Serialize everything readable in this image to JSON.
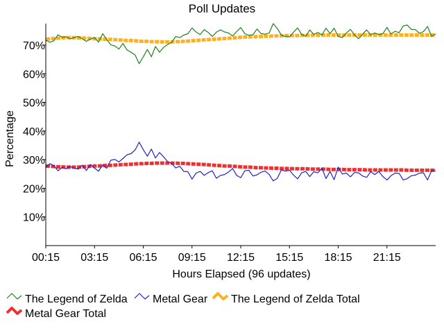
{
  "chart_data": {
    "type": "line",
    "title": "Poll Updates",
    "xlabel": "Hours Elapsed (96 updates)",
    "ylabel": "Percentage",
    "ylim": [
      0,
      77.5
    ],
    "xlim": [
      0,
      96
    ],
    "y_ticks": [
      10,
      20,
      30,
      40,
      50,
      60,
      70
    ],
    "y_tick_labels": [
      "10%",
      "20%",
      "30%",
      "40%",
      "50%",
      "60%",
      "70%"
    ],
    "x_ticks": [
      0,
      12,
      24,
      36,
      48,
      60,
      72,
      84
    ],
    "x_tick_labels": [
      "00:15",
      "03:15",
      "06:15",
      "09:15",
      "12:15",
      "15:15",
      "18:15",
      "21:15"
    ],
    "grid": false,
    "legend_position": "bottom",
    "series": [
      {
        "name": "The Legend of Zelda",
        "color": "#208020",
        "style": "thin",
        "values": [
          71.7,
          71.0,
          71.5,
          73.6,
          72.7,
          72.9,
          72.2,
          72.6,
          73.0,
          72.2,
          71.3,
          72.1,
          72.6,
          71.0,
          74.0,
          72.0,
          70.1,
          69.7,
          68.6,
          70.6,
          68.3,
          67.5,
          66.5,
          63.5,
          65.9,
          68.5,
          65.9,
          69.5,
          67.5,
          69.2,
          70.2,
          71.0,
          73.0,
          72.6,
          73.5,
          74.0,
          76.0,
          74.6,
          73.7,
          75.4,
          74.4,
          73.0,
          74.5,
          75.3,
          74.6,
          74.2,
          73.2,
          74.7,
          76.1,
          74.0,
          73.4,
          73.6,
          75.6,
          74.0,
          73.8,
          74.2,
          77.5,
          75.8,
          73.5,
          73.0,
          72.9,
          74.5,
          76.0,
          73.7,
          73.1,
          75.3,
          73.7,
          74.4,
          73.5,
          75.9,
          74.0,
          75.9,
          73.0,
          72.6,
          74.2,
          75.5,
          73.6,
          72.2,
          73.8,
          75.3,
          73.6,
          74.2,
          73.7,
          74.0,
          76.2,
          73.9,
          74.8,
          74.3,
          76.7,
          77.0,
          75.5,
          75.4,
          74.1,
          74.7,
          76.5,
          73.0,
          73.9
        ]
      },
      {
        "name": "Metal Gear",
        "color": "#2020c8",
        "style": "thin",
        "values": [
          27.3,
          28.6,
          27.9,
          26.1,
          27.3,
          26.8,
          27.6,
          27.0,
          26.7,
          28.1,
          26.2,
          28.3,
          27.0,
          26.0,
          28.1,
          27.0,
          29.8,
          30.1,
          29.2,
          30.4,
          31.7,
          32.1,
          33.4,
          36.1,
          33.5,
          31.2,
          33.7,
          30.6,
          32.5,
          31.0,
          29.3,
          28.7,
          27.1,
          27.7,
          25.9,
          25.8,
          23.2,
          25.3,
          25.9,
          24.5,
          25.5,
          26.1,
          23.5,
          24.5,
          24.8,
          25.7,
          26.9,
          24.5,
          23.7,
          26.1,
          26.3,
          24.3,
          24.7,
          25.6,
          26.0,
          24.8,
          22.6,
          23.5,
          26.4,
          26.0,
          26.3,
          24.6,
          23.3,
          25.4,
          25.9,
          24.1,
          25.8,
          25.4,
          27.0,
          23.4,
          25.9,
          23.0,
          27.4,
          25.0,
          25.3,
          24.0,
          25.5,
          25.4,
          24.3,
          23.8,
          25.8,
          24.8,
          25.9,
          24.1,
          22.9,
          24.4,
          25.3,
          25.2,
          22.9,
          23.4,
          24.4,
          24.6,
          25.3,
          25.4,
          22.9,
          26.2,
          26.1
        ]
      },
      {
        "name": "The Legend of Zelda Total",
        "color": "#ffb020",
        "style": "thick",
        "values": [
          72.0,
          72.2,
          72.3,
          72.4,
          72.5,
          72.6,
          72.6,
          72.6,
          72.5,
          72.5,
          72.4,
          72.3,
          72.2,
          72.2,
          72.1,
          72.0,
          72.0,
          71.9,
          71.8,
          71.7,
          71.6,
          71.6,
          71.5,
          71.4,
          71.3,
          71.3,
          71.2,
          71.2,
          71.1,
          71.1,
          71.1,
          71.1,
          71.2,
          71.2,
          71.3,
          71.4,
          71.5,
          71.6,
          71.7,
          71.8,
          71.9,
          72.0,
          72.1,
          72.2,
          72.3,
          72.4,
          72.5,
          72.6,
          72.7,
          72.8,
          72.8,
          72.9,
          73.0,
          73.0,
          73.1,
          73.1,
          73.2,
          73.2,
          73.2,
          73.3,
          73.3,
          73.3,
          73.3,
          73.4,
          73.4,
          73.4,
          73.4,
          73.4,
          73.5,
          73.5,
          73.5,
          73.5,
          73.5,
          73.5,
          73.5,
          73.5,
          73.5,
          73.5,
          73.5,
          73.5,
          73.5,
          73.5,
          73.5,
          73.5,
          73.5,
          73.5,
          73.5,
          73.5,
          73.5,
          73.5,
          73.5,
          73.5,
          73.5,
          73.5,
          73.5,
          73.5,
          73.5
        ]
      },
      {
        "name": "Metal Gear Total",
        "color": "#f03030",
        "style": "thick",
        "values": [
          27.8,
          27.7,
          27.6,
          27.5,
          27.5,
          27.4,
          27.4,
          27.4,
          27.4,
          27.5,
          27.6,
          27.7,
          27.8,
          27.8,
          27.9,
          28.0,
          28.0,
          28.1,
          28.2,
          28.3,
          28.3,
          28.4,
          28.5,
          28.6,
          28.6,
          28.7,
          28.7,
          28.8,
          28.8,
          28.8,
          28.8,
          28.8,
          28.8,
          28.7,
          28.7,
          28.6,
          28.5,
          28.4,
          28.4,
          28.3,
          28.2,
          28.1,
          28.0,
          27.9,
          27.8,
          27.8,
          27.7,
          27.6,
          27.5,
          27.4,
          27.4,
          27.3,
          27.2,
          27.2,
          27.1,
          27.1,
          27.0,
          27.0,
          26.9,
          26.9,
          26.9,
          26.8,
          26.8,
          26.8,
          26.8,
          26.7,
          26.7,
          26.7,
          26.7,
          26.7,
          26.6,
          26.6,
          26.6,
          26.6,
          26.5,
          26.5,
          26.5,
          26.5,
          26.5,
          26.4,
          26.4,
          26.4,
          26.4,
          26.4,
          26.4,
          26.4,
          26.4,
          26.4,
          26.4,
          26.3,
          26.3,
          26.3,
          26.3,
          26.3,
          26.3,
          26.3,
          26.3
        ]
      }
    ]
  }
}
